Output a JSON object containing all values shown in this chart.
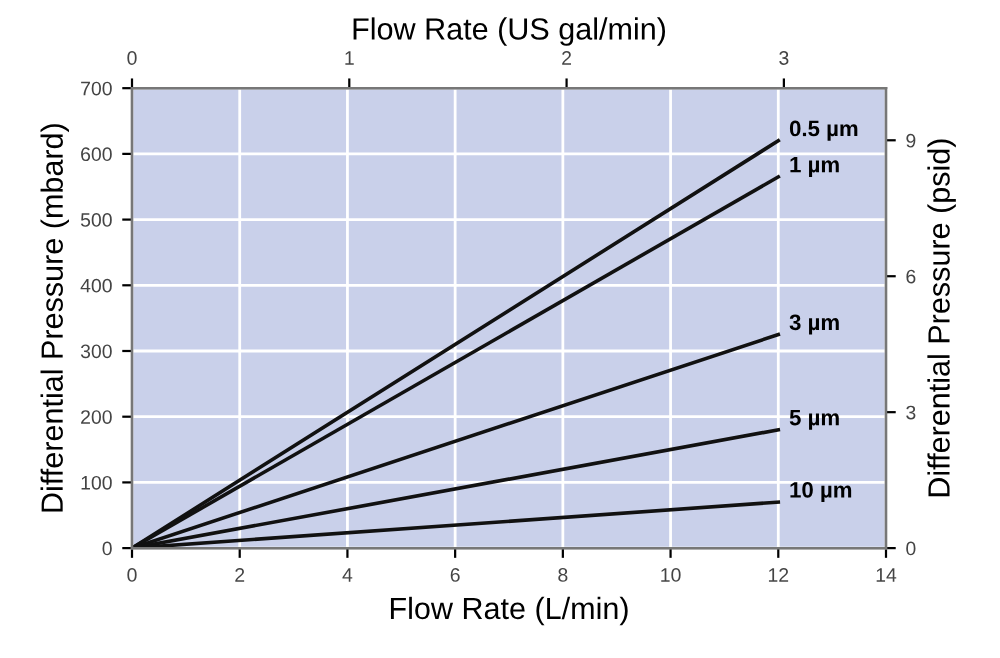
{
  "chart_data": {
    "type": "line",
    "xlabel": "Flow Rate (L/min)",
    "ylabel": "Differential Pressure (mbard)",
    "y2label": "Differential Pressure (psid)",
    "x2label": "Flow Rate (US gal/min)",
    "x": [
      0,
      12
    ],
    "series": [
      {
        "name": "0.5 µm",
        "color": "#111111",
        "values": [
          0,
          620
        ]
      },
      {
        "name": "1 µm",
        "color": "#111111",
        "values": [
          0,
          565
        ]
      },
      {
        "name": "3 µm",
        "color": "#111111",
        "values": [
          0,
          325
        ]
      },
      {
        "name": "5 µm",
        "color": "#111111",
        "values": [
          0,
          180
        ]
      },
      {
        "name": "10 µm",
        "color": "#111111",
        "values": [
          0,
          70
        ]
      }
    ],
    "xlim": [
      0,
      14
    ],
    "xticks": [
      0,
      2,
      4,
      6,
      8,
      10,
      12,
      14
    ],
    "ylim": [
      0,
      700
    ],
    "yticks": [
      0,
      100,
      200,
      300,
      400,
      500,
      600,
      700
    ],
    "y2lim": [
      0,
      10.15
    ],
    "y2ticks": [
      0,
      3,
      6,
      9
    ],
    "x2lim": [
      0,
      3.47
    ],
    "x2ticks": [
      0,
      1,
      2,
      3
    ],
    "grid": true,
    "legend": false,
    "marker": "none",
    "line_style": "solid"
  }
}
